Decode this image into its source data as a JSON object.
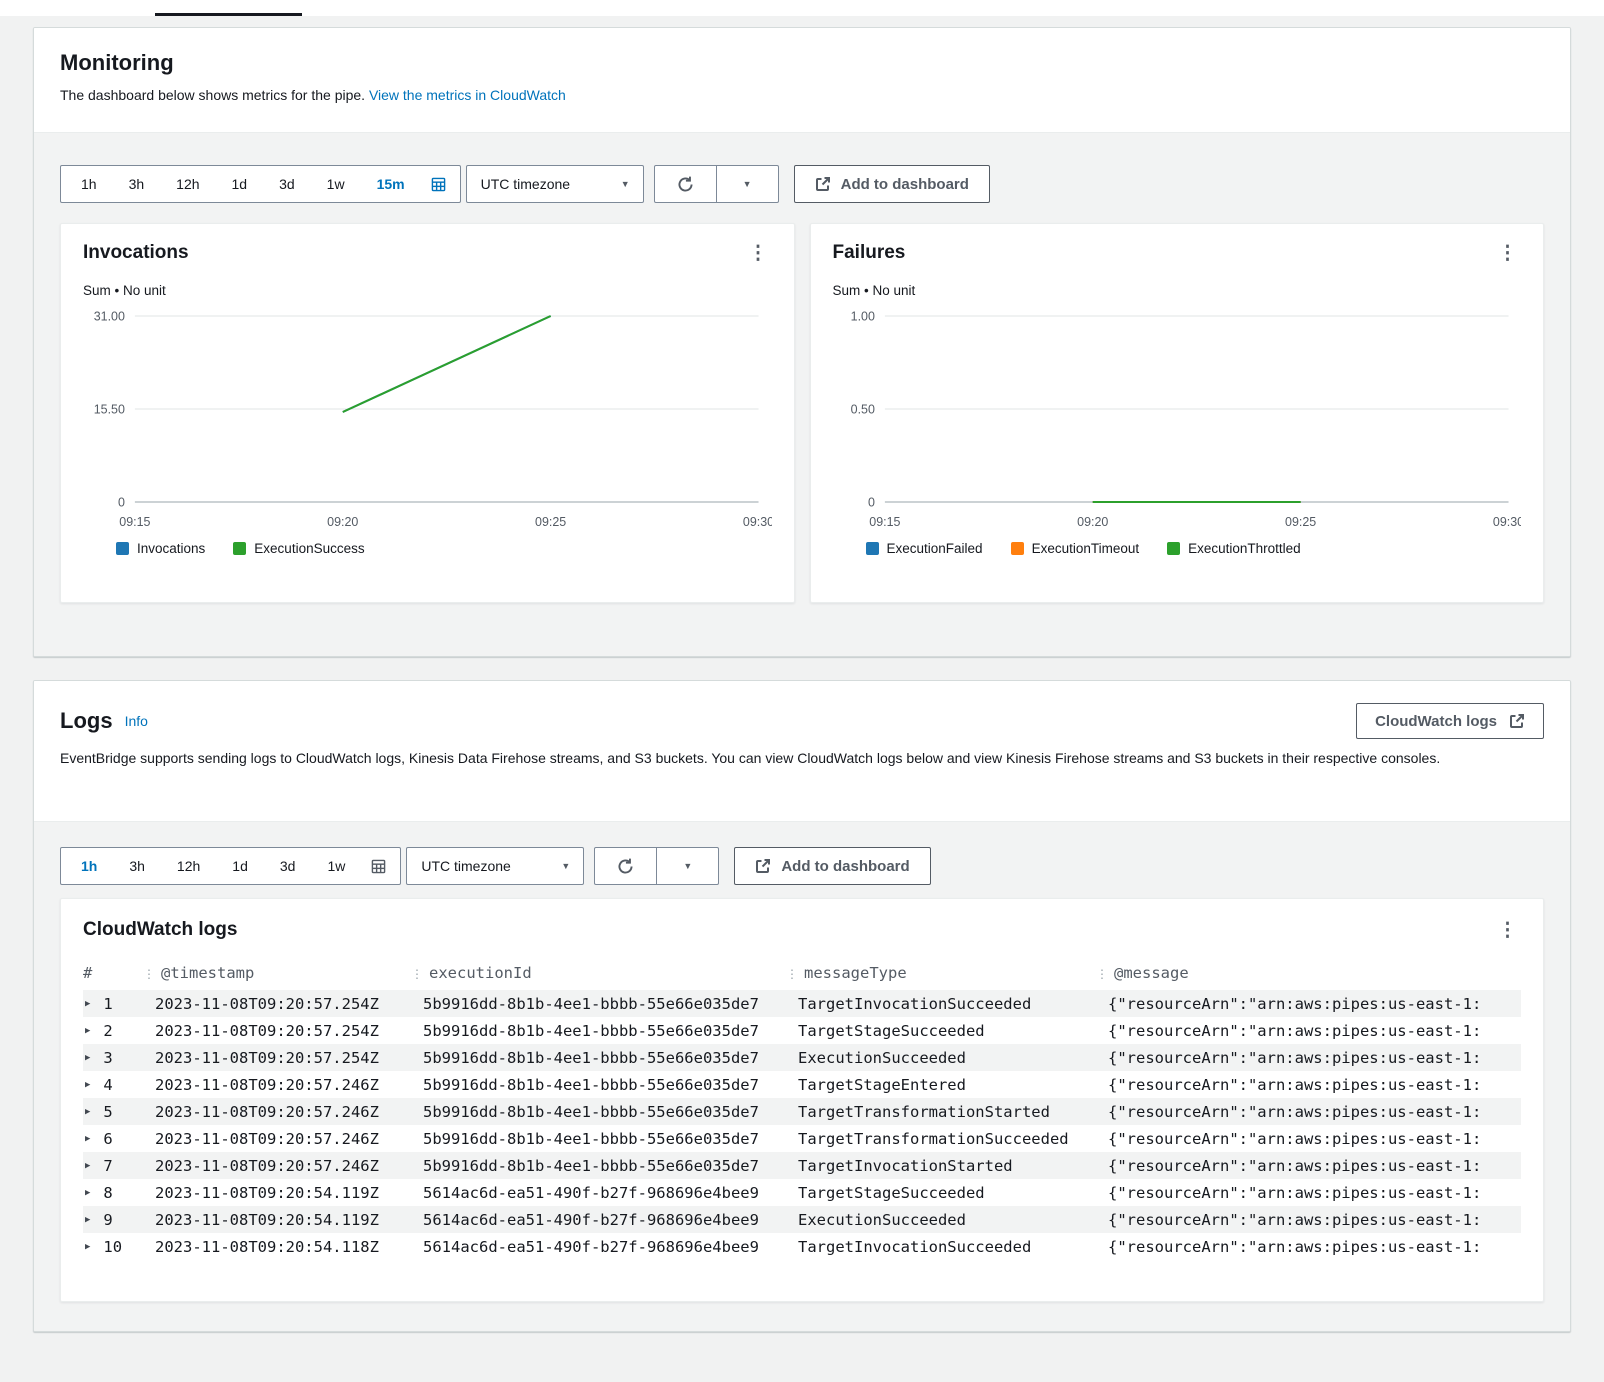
{
  "colors": {
    "accent_blue": "#0073bb",
    "series_blue": "#1f77b4",
    "series_green": "#2ca02c",
    "series_orange": "#ff7f0e"
  },
  "monitoring": {
    "title": "Monitoring",
    "description": "The dashboard below shows metrics for the pipe.",
    "link_label": "View the metrics in CloudWatch",
    "toolbar": {
      "ranges": [
        "1h",
        "3h",
        "12h",
        "1d",
        "3d",
        "1w",
        "15m"
      ],
      "selected": "15m",
      "calendar_highlighted": true,
      "timezone_label": "UTC timezone",
      "add_to_dashboard_label": "Add to dashboard"
    }
  },
  "chart_data": [
    {
      "type": "line",
      "title": "Invocations",
      "subtitle": "Sum • No unit",
      "x_domain": [
        "09:15",
        "09:30"
      ],
      "x_ticks": [
        "09:15",
        "09:20",
        "09:25",
        "09:30"
      ],
      "y_ticks": [
        0,
        15.5,
        31
      ],
      "y_tick_labels": [
        "0",
        "15.50",
        "31.00"
      ],
      "ylim": [
        0,
        34
      ],
      "series": [
        {
          "name": "Invocations",
          "color": "#1f77b4",
          "points": [
            [
              "09:20",
              15
            ],
            [
              "09:25",
              31
            ]
          ]
        },
        {
          "name": "ExecutionSuccess",
          "color": "#2ca02c",
          "points": [
            [
              "09:20",
              15
            ],
            [
              "09:25",
              31
            ]
          ]
        }
      ],
      "legend": [
        {
          "label": "Invocations",
          "color": "#1f77b4"
        },
        {
          "label": "ExecutionSuccess",
          "color": "#2ca02c"
        }
      ]
    },
    {
      "type": "line",
      "title": "Failures",
      "subtitle": "Sum • No unit",
      "x_domain": [
        "09:15",
        "09:30"
      ],
      "x_ticks": [
        "09:15",
        "09:20",
        "09:25",
        "09:30"
      ],
      "y_ticks": [
        0,
        0.5,
        1
      ],
      "y_tick_labels": [
        "0",
        "0.50",
        "1.00"
      ],
      "ylim": [
        0,
        1.1
      ],
      "series": [
        {
          "name": "ExecutionFailed",
          "color": "#1f77b4",
          "points": [
            [
              "09:20",
              0
            ],
            [
              "09:25",
              0
            ]
          ]
        },
        {
          "name": "ExecutionTimeout",
          "color": "#ff7f0e",
          "points": [
            [
              "09:20",
              0
            ],
            [
              "09:25",
              0
            ]
          ]
        },
        {
          "name": "ExecutionThrottled",
          "color": "#2ca02c",
          "points": [
            [
              "09:20",
              0
            ],
            [
              "09:25",
              0
            ]
          ]
        }
      ],
      "legend": [
        {
          "label": "ExecutionFailed",
          "color": "#1f77b4"
        },
        {
          "label": "ExecutionTimeout",
          "color": "#ff7f0e"
        },
        {
          "label": "ExecutionThrottled",
          "color": "#2ca02c"
        }
      ]
    }
  ],
  "logs": {
    "title": "Logs",
    "info_label": "Info",
    "cloudwatch_logs_button": "CloudWatch logs",
    "description": "EventBridge supports sending logs to CloudWatch logs, Kinesis Data Firehose streams, and S3 buckets. You can view CloudWatch logs below and view Kinesis Firehose streams and S3 buckets in their respective consoles.",
    "toolbar": {
      "ranges": [
        "1h",
        "3h",
        "12h",
        "1d",
        "3d",
        "1w"
      ],
      "selected": "1h",
      "calendar_highlighted": false,
      "timezone_label": "UTC timezone",
      "add_to_dashboard_label": "Add to dashboard"
    },
    "panel_title": "CloudWatch logs",
    "table": {
      "columns": [
        "#",
        "@timestamp",
        "executionId",
        "messageType",
        "@message"
      ],
      "rows": [
        {
          "num": "1",
          "timestamp": "2023-11-08T09:20:57.254Z",
          "executionId": "5b9916dd-8b1b-4ee1-bbbb-55e66e035de7",
          "messageType": "TargetInvocationSucceeded",
          "message": "{\"resourceArn\":\"arn:aws:pipes:us-east-1:"
        },
        {
          "num": "2",
          "timestamp": "2023-11-08T09:20:57.254Z",
          "executionId": "5b9916dd-8b1b-4ee1-bbbb-55e66e035de7",
          "messageType": "TargetStageSucceeded",
          "message": "{\"resourceArn\":\"arn:aws:pipes:us-east-1:"
        },
        {
          "num": "3",
          "timestamp": "2023-11-08T09:20:57.254Z",
          "executionId": "5b9916dd-8b1b-4ee1-bbbb-55e66e035de7",
          "messageType": "ExecutionSucceeded",
          "message": "{\"resourceArn\":\"arn:aws:pipes:us-east-1:"
        },
        {
          "num": "4",
          "timestamp": "2023-11-08T09:20:57.246Z",
          "executionId": "5b9916dd-8b1b-4ee1-bbbb-55e66e035de7",
          "messageType": "TargetStageEntered",
          "message": "{\"resourceArn\":\"arn:aws:pipes:us-east-1:"
        },
        {
          "num": "5",
          "timestamp": "2023-11-08T09:20:57.246Z",
          "executionId": "5b9916dd-8b1b-4ee1-bbbb-55e66e035de7",
          "messageType": "TargetTransformationStarted",
          "message": "{\"resourceArn\":\"arn:aws:pipes:us-east-1:"
        },
        {
          "num": "6",
          "timestamp": "2023-11-08T09:20:57.246Z",
          "executionId": "5b9916dd-8b1b-4ee1-bbbb-55e66e035de7",
          "messageType": "TargetTransformationSucceeded",
          "message": "{\"resourceArn\":\"arn:aws:pipes:us-east-1:"
        },
        {
          "num": "7",
          "timestamp": "2023-11-08T09:20:57.246Z",
          "executionId": "5b9916dd-8b1b-4ee1-bbbb-55e66e035de7",
          "messageType": "TargetInvocationStarted",
          "message": "{\"resourceArn\":\"arn:aws:pipes:us-east-1:"
        },
        {
          "num": "8",
          "timestamp": "2023-11-08T09:20:54.119Z",
          "executionId": "5614ac6d-ea51-490f-b27f-968696e4bee9",
          "messageType": "TargetStageSucceeded",
          "message": "{\"resourceArn\":\"arn:aws:pipes:us-east-1:"
        },
        {
          "num": "9",
          "timestamp": "2023-11-08T09:20:54.119Z",
          "executionId": "5614ac6d-ea51-490f-b27f-968696e4bee9",
          "messageType": "ExecutionSucceeded",
          "message": "{\"resourceArn\":\"arn:aws:pipes:us-east-1:"
        },
        {
          "num": "10",
          "timestamp": "2023-11-08T09:20:54.118Z",
          "executionId": "5614ac6d-ea51-490f-b27f-968696e4bee9",
          "messageType": "TargetInvocationSucceeded",
          "message": "{\"resourceArn\":\"arn:aws:pipes:us-east-1:"
        }
      ]
    }
  }
}
